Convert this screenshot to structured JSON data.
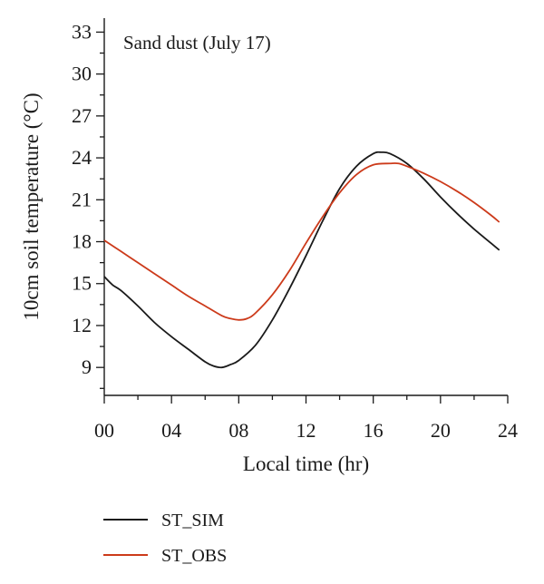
{
  "chart_data": {
    "type": "line",
    "annotation": "Sand dust (July 17)",
    "xlabel": "Local time (hr)",
    "ylabel": "10cm soil temperature (°C)",
    "xlim": [
      0,
      24
    ],
    "ylim": [
      7,
      34
    ],
    "x_ticks": [
      "00",
      "04",
      "08",
      "12",
      "16",
      "20",
      "24"
    ],
    "x_tick_values": [
      0,
      4,
      8,
      12,
      16,
      20,
      24
    ],
    "y_ticks": [
      "9",
      "12",
      "15",
      "18",
      "21",
      "24",
      "27",
      "30",
      "33"
    ],
    "y_tick_values": [
      9,
      12,
      15,
      18,
      21,
      24,
      27,
      30,
      33
    ],
    "grid": false,
    "legend_position": "bottom-left",
    "series": [
      {
        "name": "ST_SIM",
        "color": "#1a1a1a",
        "x": [
          0,
          0.5,
          1,
          2,
          3,
          4,
          5,
          6,
          6.5,
          7,
          7.5,
          8,
          9,
          10,
          11,
          12,
          13,
          14,
          15,
          16,
          16.5,
          17,
          18,
          19,
          20,
          21,
          22,
          23,
          23.5
        ],
        "y": [
          15.5,
          14.9,
          14.5,
          13.4,
          12.2,
          11.2,
          10.3,
          9.4,
          9.1,
          9.0,
          9.2,
          9.5,
          10.6,
          12.4,
          14.6,
          17.0,
          19.5,
          21.8,
          23.4,
          24.3,
          24.4,
          24.3,
          23.6,
          22.5,
          21.2,
          20.0,
          18.9,
          17.9,
          17.4
        ]
      },
      {
        "name": "ST_OBS",
        "color": "#cc3a1a",
        "x": [
          0,
          1,
          2,
          3,
          4,
          5,
          6,
          7,
          7.5,
          8,
          8.5,
          9,
          10,
          11,
          12,
          13,
          14,
          15,
          16,
          17,
          17.5,
          18,
          19,
          20,
          21,
          22,
          23,
          23.5
        ],
        "y": [
          18.1,
          17.3,
          16.5,
          15.7,
          14.9,
          14.1,
          13.4,
          12.7,
          12.5,
          12.4,
          12.5,
          12.9,
          14.2,
          15.9,
          17.9,
          19.8,
          21.5,
          22.8,
          23.5,
          23.6,
          23.6,
          23.4,
          22.9,
          22.3,
          21.6,
          20.8,
          19.9,
          19.4
        ]
      }
    ]
  }
}
